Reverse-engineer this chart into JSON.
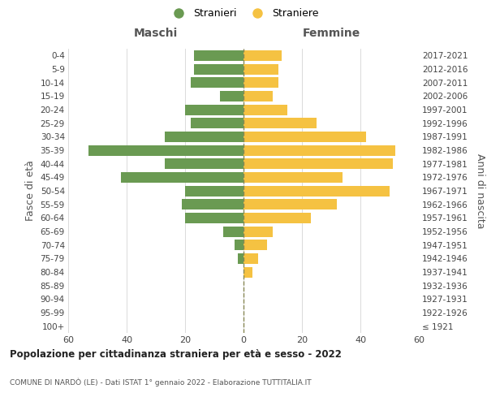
{
  "age_groups": [
    "100+",
    "95-99",
    "90-94",
    "85-89",
    "80-84",
    "75-79",
    "70-74",
    "65-69",
    "60-64",
    "55-59",
    "50-54",
    "45-49",
    "40-44",
    "35-39",
    "30-34",
    "25-29",
    "20-24",
    "15-19",
    "10-14",
    "5-9",
    "0-4"
  ],
  "birth_years": [
    "≤ 1921",
    "1922-1926",
    "1927-1931",
    "1932-1936",
    "1937-1941",
    "1942-1946",
    "1947-1951",
    "1952-1956",
    "1957-1961",
    "1962-1966",
    "1967-1971",
    "1972-1976",
    "1977-1981",
    "1982-1986",
    "1987-1991",
    "1992-1996",
    "1997-2001",
    "2002-2006",
    "2007-2011",
    "2012-2016",
    "2017-2021"
  ],
  "maschi": [
    0,
    0,
    0,
    0,
    0,
    2,
    3,
    7,
    20,
    21,
    20,
    42,
    27,
    53,
    27,
    18,
    20,
    8,
    18,
    17,
    17
  ],
  "femmine": [
    0,
    0,
    0,
    0,
    3,
    5,
    8,
    10,
    23,
    32,
    50,
    34,
    51,
    52,
    42,
    25,
    15,
    10,
    12,
    12,
    13
  ],
  "male_color": "#6a9a52",
  "female_color": "#f5c242",
  "grid_color": "#cccccc",
  "dashed_color": "#888855",
  "title": "Popolazione per cittadinanza straniera per età e sesso - 2022",
  "subtitle": "COMUNE DI NARDÒ (LE) - Dati ISTAT 1° gennaio 2022 - Elaborazione TUTTITALIA.IT",
  "xlabel_left": "Maschi",
  "xlabel_right": "Femmine",
  "ylabel_left": "Fasce di età",
  "ylabel_right": "Anni di nascita",
  "legend_male": "Stranieri",
  "legend_female": "Straniere",
  "xlim": 60,
  "background_color": "#ffffff"
}
